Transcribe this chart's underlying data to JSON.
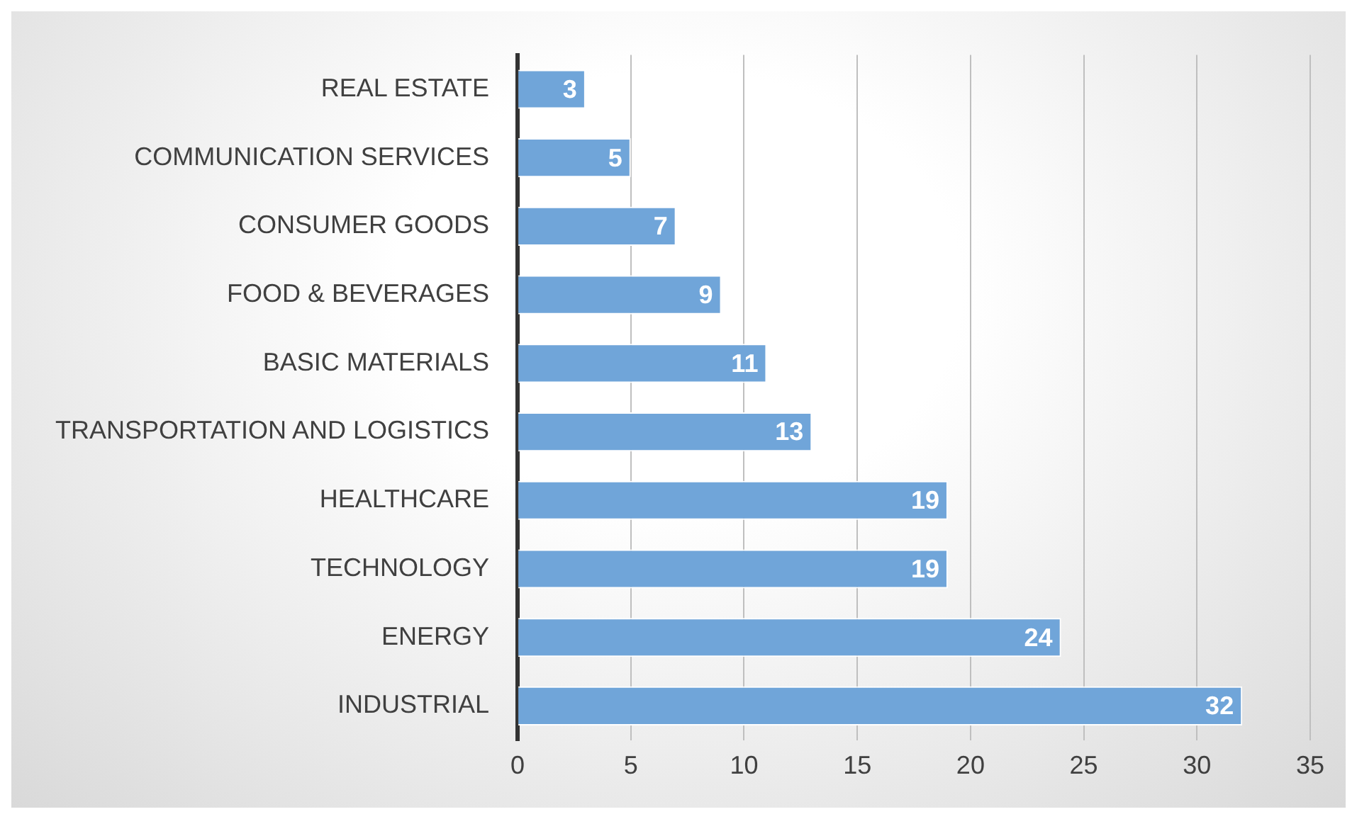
{
  "chart_data": {
    "type": "bar",
    "orientation": "horizontal",
    "categories": [
      "REAL ESTATE",
      "COMMUNICATION SERVICES",
      "CONSUMER GOODS",
      "FOOD & BEVERAGES",
      "BASIC MATERIALS",
      "TRANSPORTATION AND LOGISTICS",
      "HEALTHCARE",
      "TECHNOLOGY",
      "ENERGY",
      "INDUSTRIAL"
    ],
    "values": [
      3,
      5,
      7,
      9,
      11,
      13,
      19,
      19,
      24,
      32
    ],
    "color": "#70a5d9",
    "xlim": [
      0,
      35
    ],
    "xticks": [
      0,
      5,
      10,
      15,
      20,
      25,
      30,
      35
    ],
    "grid": "x",
    "data_labels": true,
    "legend": false
  }
}
